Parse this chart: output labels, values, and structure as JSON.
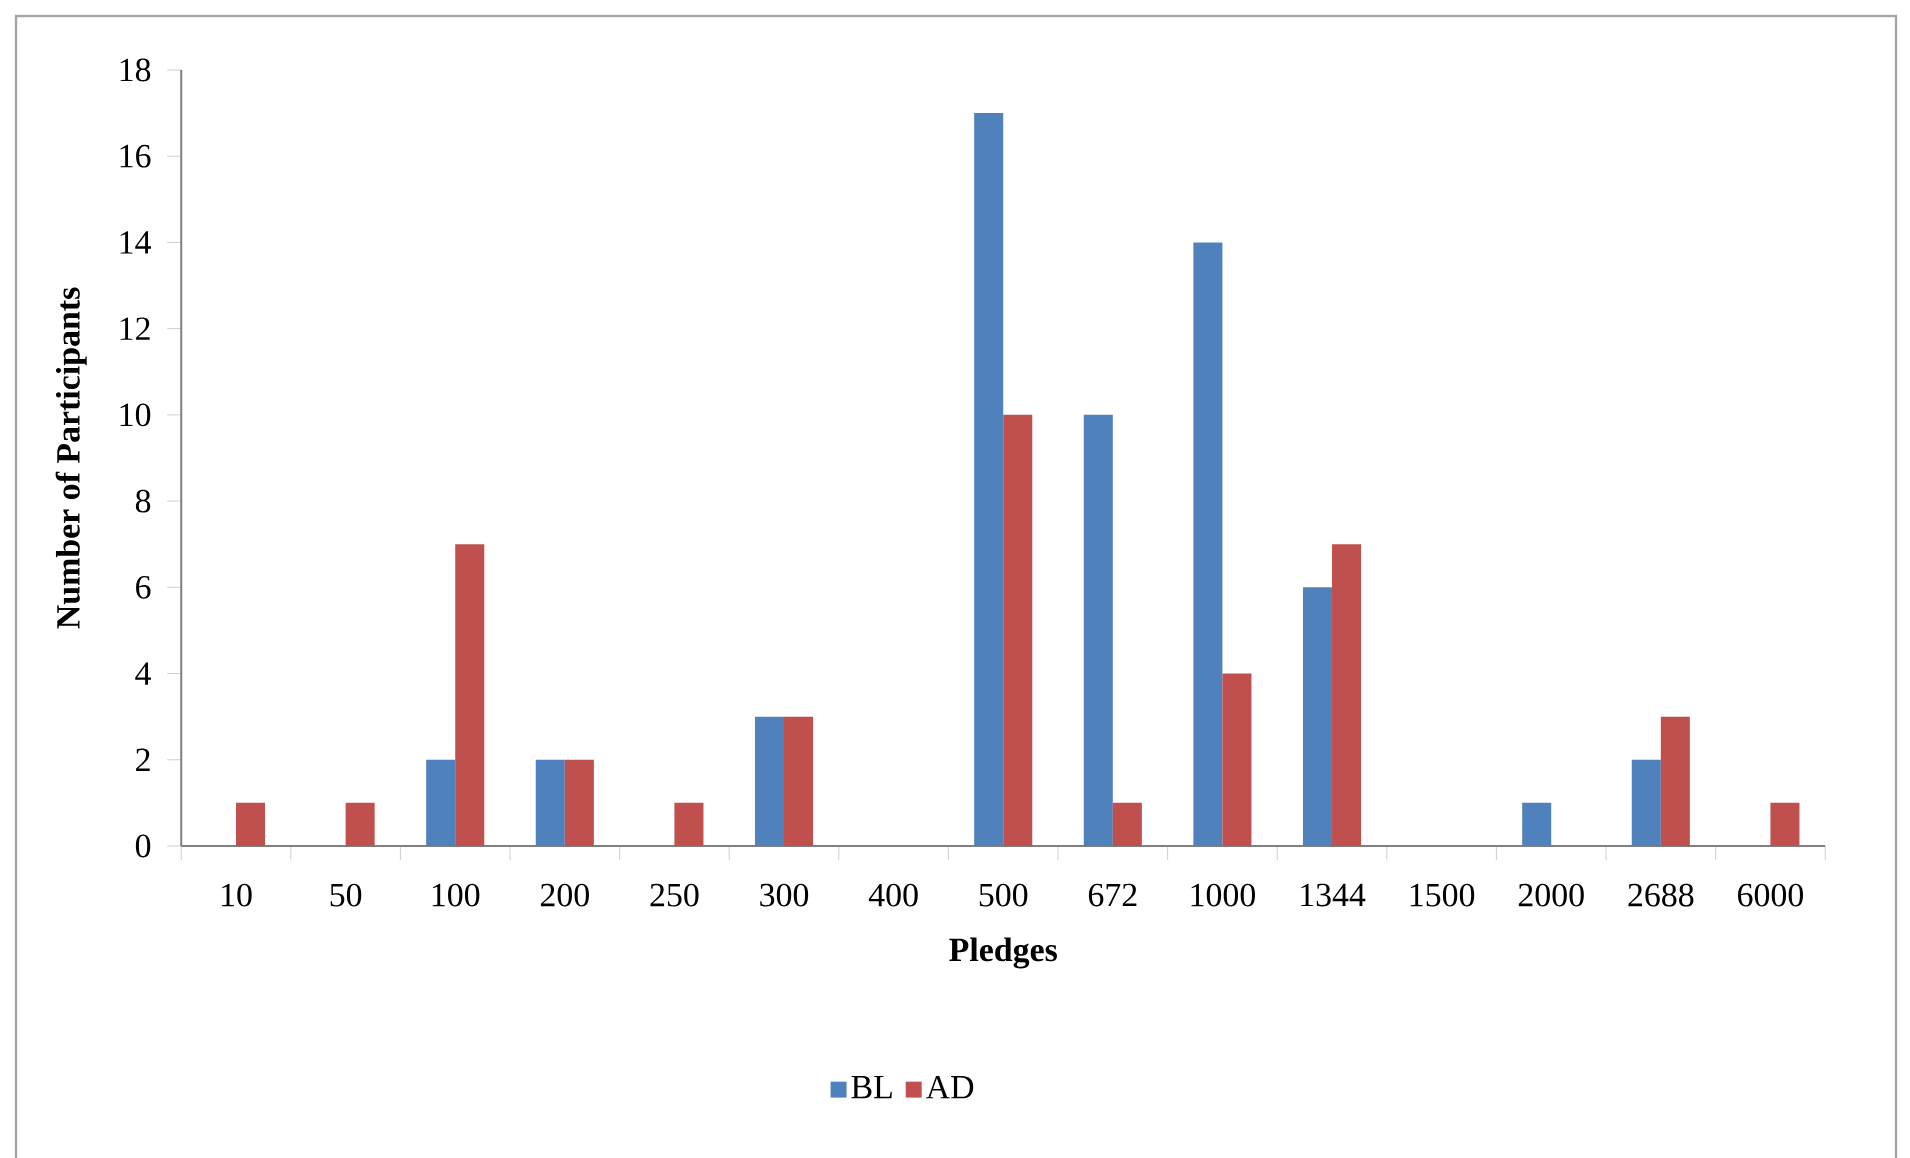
{
  "chart_data": {
    "type": "bar",
    "xlabel": "Pledges",
    "ylabel": "Number of Participants",
    "categories": [
      "10",
      "50",
      "100",
      "200",
      "250",
      "300",
      "400",
      "500",
      "672",
      "1000",
      "1344",
      "1500",
      "2000",
      "2688",
      "6000"
    ],
    "series": [
      {
        "name": "BL",
        "color": "#4f81bd",
        "values": [
          0,
          0,
          2,
          2,
          0,
          3,
          0,
          17,
          10,
          14,
          6,
          0,
          1,
          2,
          0
        ]
      },
      {
        "name": "AD",
        "color": "#c0504d",
        "values": [
          1,
          1,
          7,
          2,
          1,
          3,
          0,
          10,
          1,
          4,
          7,
          0,
          0,
          3,
          1
        ]
      }
    ],
    "ylim": [
      0,
      18
    ],
    "yticks": [
      0,
      2,
      4,
      6,
      8,
      10,
      12,
      14,
      16,
      18
    ],
    "grid": false,
    "legend": "bottom"
  }
}
